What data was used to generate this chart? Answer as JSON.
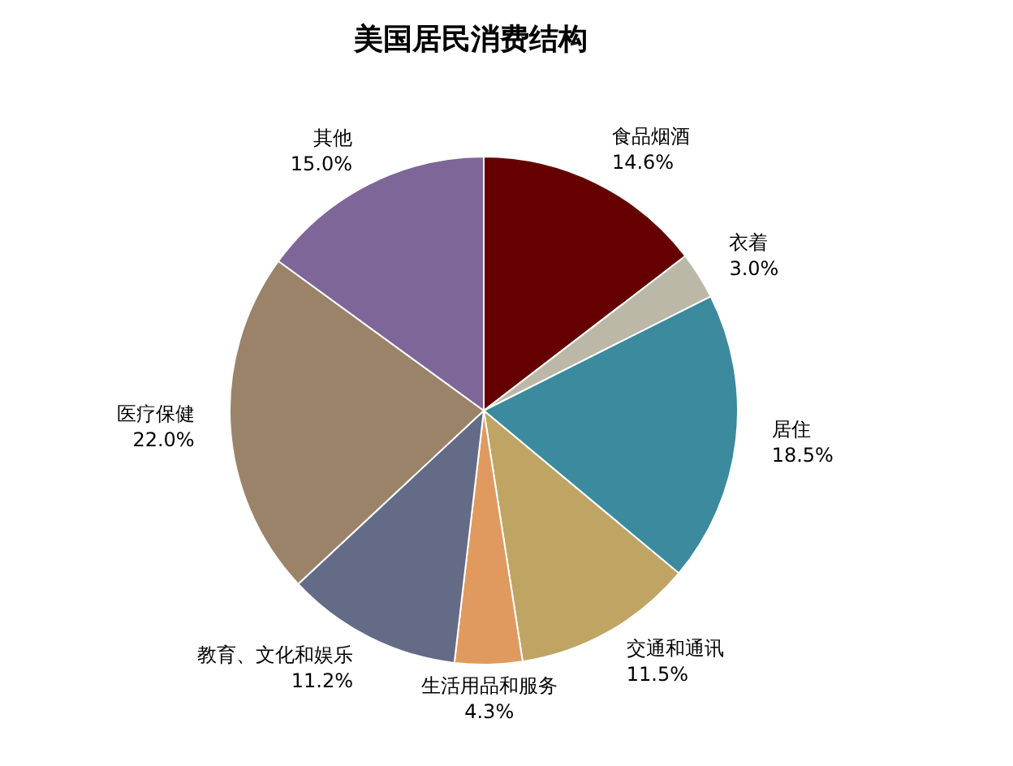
{
  "chart_data": {
    "type": "pie",
    "title": "美国居民消费结构",
    "categories": [
      "食品烟酒",
      "衣着",
      "居住",
      "交通和通讯",
      "生活用品和服务",
      "教育、文化和娱乐",
      "医疗保健",
      "其他"
    ],
    "values": [
      14.6,
      3.0,
      18.5,
      11.5,
      4.3,
      11.2,
      22.0,
      15.0
    ],
    "value_labels": [
      "14.6%",
      "3.0%",
      "18.5%",
      "11.5%",
      "4.3%",
      "11.2%",
      "22.0%",
      "15.0%"
    ],
    "colors": [
      "#660000",
      "#bcb8a8",
      "#3b8a9e",
      "#c0a463",
      "#e09a60",
      "#636b86",
      "#9b836a",
      "#7e6699"
    ],
    "legend": false
  }
}
